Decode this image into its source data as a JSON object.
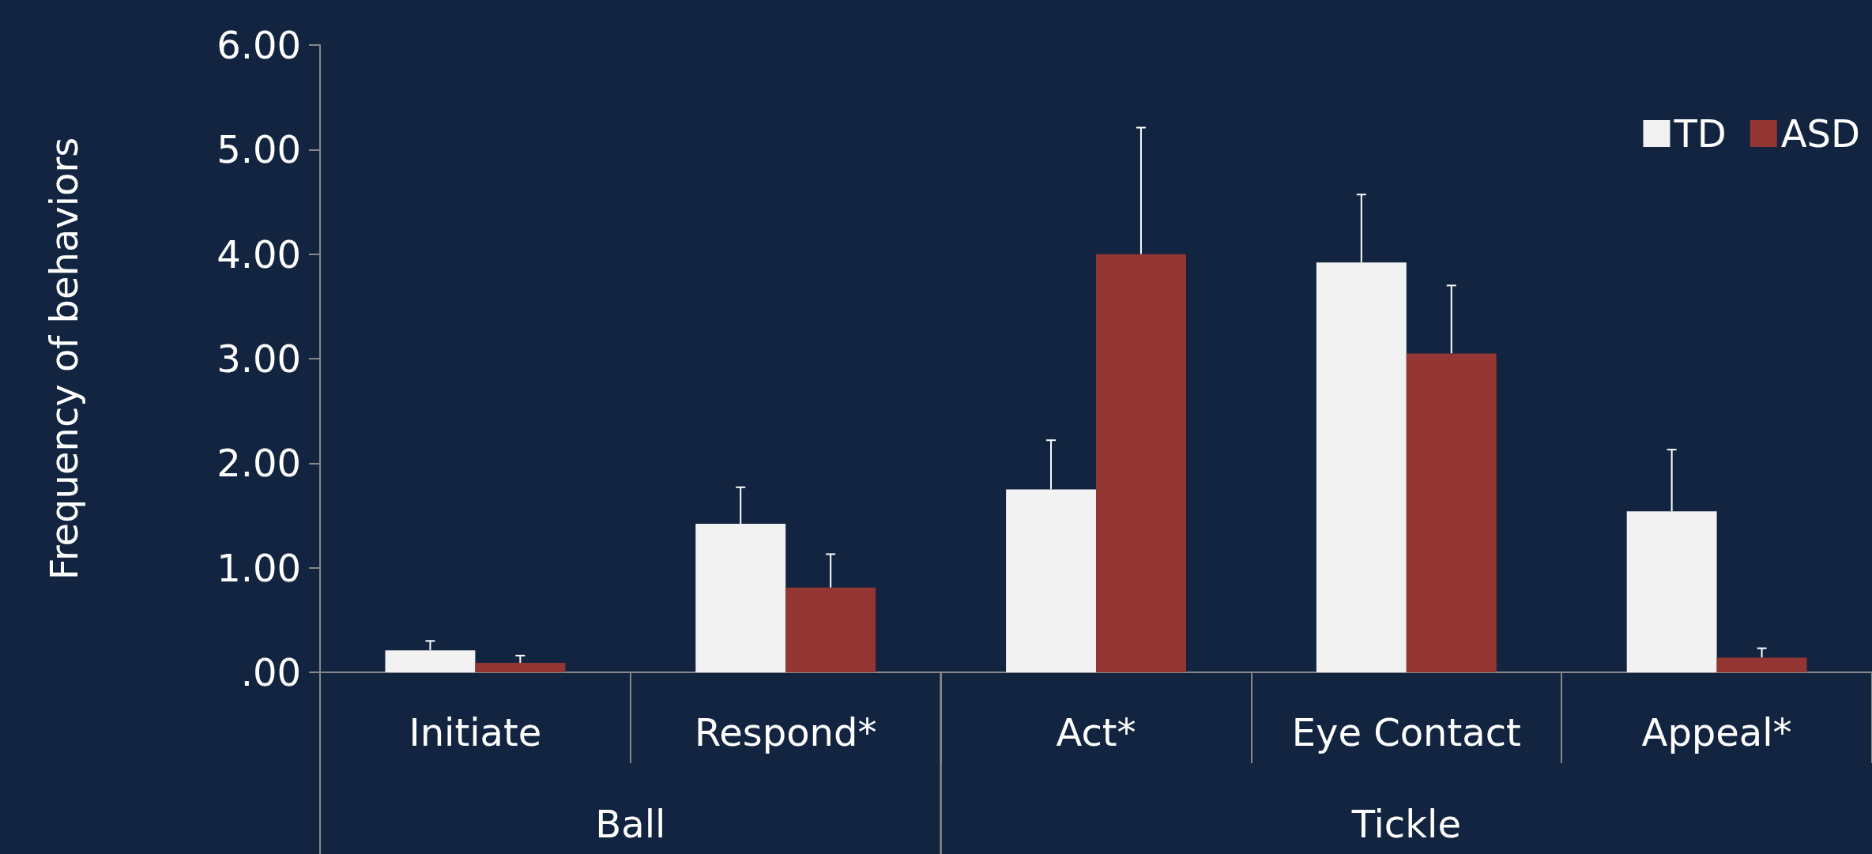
{
  "chart_data": {
    "type": "bar",
    "ylabel": "Frequency of behaviors",
    "categories": [
      "Initiate",
      "Respond*",
      "Act*",
      "Eye Contact",
      "Appeal*"
    ],
    "series": [
      {
        "name": "TD",
        "color": "#f2f2f2",
        "values": [
          0.21,
          1.42,
          1.75,
          3.92,
          1.54
        ],
        "errors": [
          [
            0.21,
            0.3
          ],
          [
            1.42,
            1.77
          ],
          [
            1.75,
            2.22
          ],
          [
            3.92,
            4.57
          ],
          [
            1.54,
            2.13
          ]
        ]
      },
      {
        "name": "ASD",
        "color": "#943634",
        "values": [
          0.09,
          0.81,
          4.0,
          3.05,
          0.14
        ],
        "errors": [
          [
            0.09,
            0.16
          ],
          [
            0.81,
            1.13
          ],
          [
            4.0,
            5.21
          ],
          [
            3.05,
            3.7
          ],
          [
            0.14,
            0.23
          ]
        ]
      }
    ],
    "annotations": [
      "Ball",
      "Tickle"
    ],
    "ylim": [
      0,
      6
    ],
    "yticks": [
      {
        "value": 0,
        "label": ".00"
      },
      {
        "value": 1,
        "label": "1.00"
      },
      {
        "value": 2,
        "label": "2.00"
      },
      {
        "value": 3,
        "label": "3.00"
      },
      {
        "value": 4,
        "label": "4.00"
      },
      {
        "value": 5,
        "label": "5.00"
      },
      {
        "value": 6,
        "label": "6.00"
      }
    ],
    "grid": false,
    "legend": "top right"
  }
}
